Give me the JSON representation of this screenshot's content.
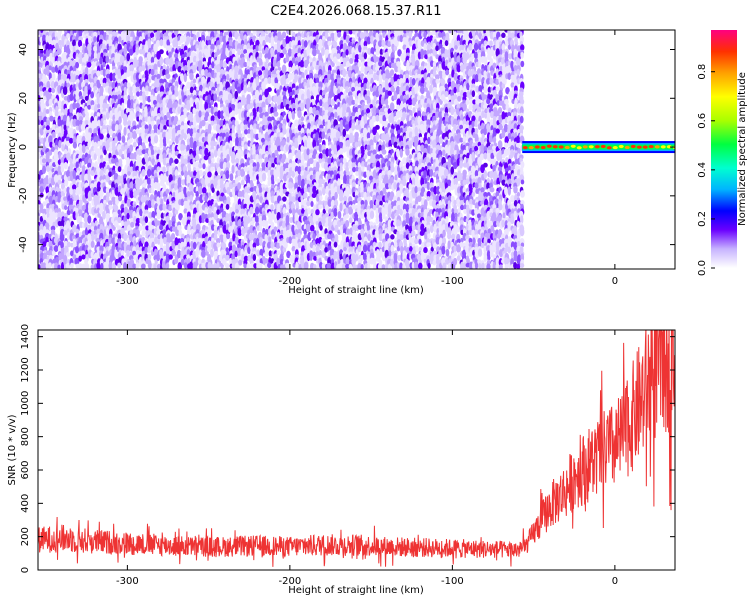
{
  "title": "C2E4.2026.068.15.37.R11",
  "chart_data": [
    {
      "type": "heatmap",
      "xlabel": "Height of straight line (km)",
      "ylabel": "Frequency (Hz)",
      "xlim": [
        -355,
        37
      ],
      "ylim": [
        -50,
        48
      ],
      "x_ticks": [
        -300,
        -200,
        -100,
        0
      ],
      "y_ticks": [
        -40,
        -20,
        0,
        20,
        40
      ],
      "colorbar": {
        "label": "Normalized spectral amplitude",
        "range": [
          0,
          0.97
        ],
        "ticks": [
          "0.0",
          "0.2",
          "0.4",
          "0.6",
          "0.8"
        ],
        "colormap": [
          "#ffffff",
          "#c7b3ff",
          "#6a00ff",
          "#0000ff",
          "#00b4ff",
          "#00ffd0",
          "#00ff40",
          "#aaff00",
          "#ffff00",
          "#ffa000",
          "#ff3000",
          "#ff0080"
        ]
      },
      "regions": [
        {
          "x_range": [
            -355,
            -57
          ],
          "description_value": "noise",
          "mean_amplitude": 0.12,
          "freq_range": [
            -50,
            48
          ]
        },
        {
          "x_range": [
            -57,
            37
          ],
          "carrier_frequency": 0,
          "peak_amplitude": 0.95
        }
      ]
    },
    {
      "type": "line",
      "xlabel": "Height of straight line (km)",
      "ylabel": "SNR (10 * v/v)",
      "xlim": [
        -355,
        37
      ],
      "ylim": [
        0,
        1440
      ],
      "x_ticks": [
        -300,
        -200,
        -100,
        0
      ],
      "y_ticks": [
        0,
        200,
        400,
        600,
        800,
        1000,
        1200,
        1400
      ],
      "series": [
        {
          "color": "#ee3333",
          "x": [
            -355,
            -340,
            -320,
            -300,
            -280,
            -260,
            -240,
            -220,
            -200,
            -180,
            -160,
            -140,
            -120,
            -100,
            -80,
            -60,
            -55,
            -50,
            -45,
            -40,
            -35,
            -30,
            -25,
            -20,
            -15,
            -10,
            -5,
            0,
            5,
            10,
            15,
            20,
            25,
            30,
            37
          ],
          "y": [
            180,
            190,
            170,
            160,
            150,
            140,
            140,
            145,
            140,
            150,
            150,
            140,
            135,
            130,
            125,
            120,
            140,
            220,
            300,
            380,
            430,
            480,
            560,
            600,
            640,
            680,
            720,
            740,
            800,
            900,
            1000,
            1100,
            1200,
            1250,
            1300
          ]
        }
      ]
    }
  ]
}
